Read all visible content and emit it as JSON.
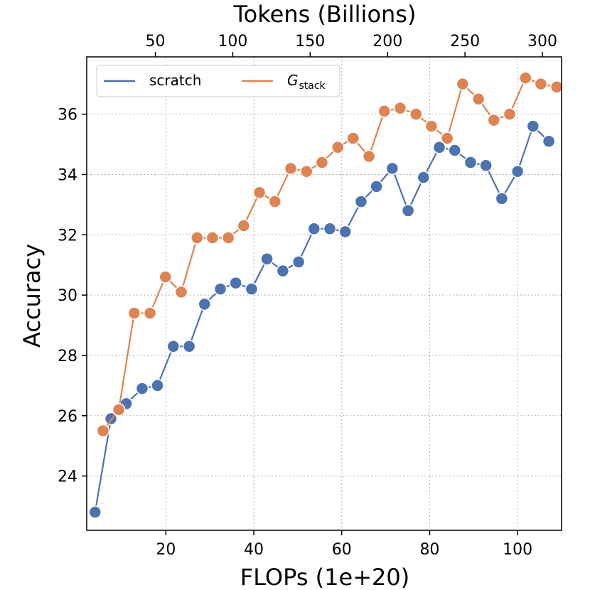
{
  "chart_data": {
    "type": "line",
    "x_axis_bottom": {
      "label": "FLOPs (1e+20)",
      "range": [
        2,
        110
      ],
      "ticks": [
        20,
        40,
        60,
        80,
        100
      ],
      "tick_labels": [
        "20",
        "40",
        "60",
        "80",
        "100"
      ]
    },
    "x_axis_top": {
      "label": "Tokens (Billions)",
      "ticks": [
        50,
        100,
        150,
        200,
        250,
        300
      ],
      "tick_labels": [
        "50",
        "100",
        "150",
        "200",
        "250",
        "300"
      ],
      "tokens_per_flop_unit": 2.84
    },
    "y_axis": {
      "label": "Accuracy",
      "range": [
        22.2,
        37.9
      ],
      "ticks": [
        24,
        26,
        28,
        30,
        32,
        34,
        36
      ],
      "tick_labels": [
        "24",
        "26",
        "28",
        "30",
        "32",
        "34",
        "36"
      ]
    },
    "grid": true,
    "legend": {
      "position": "top-left",
      "columns": 2
    },
    "series": [
      {
        "name": "scratch",
        "color": "#4c72b0",
        "x": [
          3.9,
          7.5,
          11.0,
          14.6,
          18.1,
          21.7,
          25.3,
          28.8,
          32.4,
          35.9,
          39.5,
          43.0,
          46.6,
          50.2,
          53.7,
          57.3,
          60.8,
          64.4,
          67.9,
          71.5,
          75.1,
          78.6,
          82.2,
          85.7,
          89.3,
          92.8,
          96.4,
          100.0,
          103.5,
          107.1
        ],
        "y": [
          22.8,
          25.9,
          26.4,
          26.9,
          27.0,
          28.3,
          28.3,
          29.7,
          30.2,
          30.4,
          30.2,
          31.2,
          30.8,
          31.1,
          32.2,
          32.2,
          32.1,
          33.1,
          33.6,
          34.2,
          32.8,
          33.9,
          34.9,
          34.8,
          34.4,
          34.3,
          33.2,
          34.1,
          35.6,
          35.1
        ]
      },
      {
        "name": "G",
        "name_subscript": "stack",
        "color": "#dd8452",
        "x": [
          5.7,
          9.3,
          12.8,
          16.4,
          19.9,
          23.5,
          27.1,
          30.6,
          34.2,
          37.7,
          41.3,
          44.8,
          48.4,
          52.0,
          55.5,
          59.1,
          62.6,
          66.2,
          69.7,
          73.3,
          76.9,
          80.4,
          84.0,
          87.5,
          91.1,
          94.6,
          98.2,
          101.8,
          105.3,
          108.9
        ],
        "y": [
          25.5,
          26.2,
          29.4,
          29.4,
          30.6,
          30.1,
          31.9,
          31.9,
          31.9,
          32.3,
          33.4,
          33.1,
          34.2,
          34.1,
          34.4,
          34.9,
          35.2,
          34.6,
          36.1,
          36.2,
          36.0,
          35.6,
          35.2,
          37.0,
          36.5,
          35.8,
          36.0,
          37.2,
          37.0,
          36.9
        ]
      }
    ]
  }
}
